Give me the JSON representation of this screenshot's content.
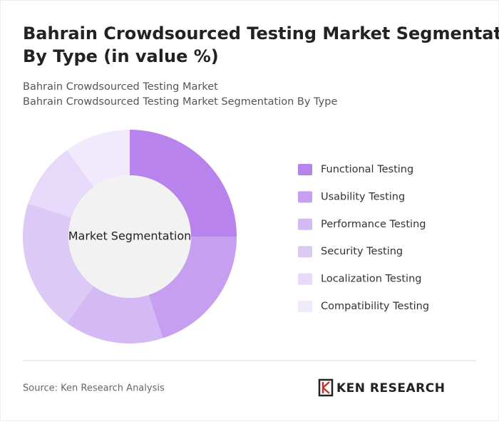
{
  "chart_data": {
    "type": "donut",
    "title": "Bahrain Crowdsourced Testing Market Segmentation By Type (in value %)",
    "subtitle": [
      "Bahrain Crowdsourced Testing Market",
      "Bahrain Crowdsourced Testing Market Segmentation By Type"
    ],
    "center_label": "Market Segmentation",
    "categories": [
      "Functional Testing",
      "Usability Testing",
      "Performance Testing",
      "Security Testing",
      "Localization Testing",
      "Compatibility Testing"
    ],
    "values": [
      25,
      20,
      15,
      20,
      10,
      10
    ],
    "colors": [
      "#b883ec",
      "#c79ff0",
      "#d5b9f4",
      "#ddc9f6",
      "#e7d9f9",
      "#f1e9fc"
    ],
    "legend": "right",
    "source": "Source: Ken Research Analysis",
    "logo": "KEN RESEARCH"
  }
}
